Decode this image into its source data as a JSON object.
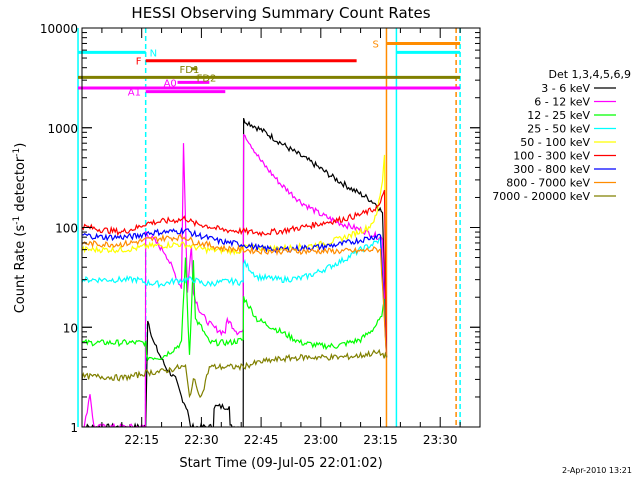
{
  "chart_data": {
    "type": "line",
    "title": "HESSI Observing Summary Count Rates",
    "xlabel": "Start Time (09-Jul-05 22:01:02)",
    "ylabel": "Count Rate (s⁻¹ detector⁻¹)",
    "ylabel_main": "Count Rate (s",
    "ylabel_sup1": "-1",
    "ylabel_mid": " detector",
    "ylabel_sup2": "-1",
    "ylabel_end": ")",
    "yscale": "log",
    "xlim_minutes": [
      0,
      100
    ],
    "ylim": [
      1,
      10000
    ],
    "x_ticks": [
      {
        "t": 15,
        "label": "22:15"
      },
      {
        "t": 30,
        "label": "22:30"
      },
      {
        "t": 45,
        "label": "22:45"
      },
      {
        "t": 60,
        "label": "23:00"
      },
      {
        "t": 75,
        "label": "23:15"
      },
      {
        "t": 90,
        "label": "23:30"
      }
    ],
    "y_ticks": [
      {
        "v": 1,
        "label": "1"
      },
      {
        "v": 10,
        "label": "10"
      },
      {
        "v": 100,
        "label": "100"
      },
      {
        "v": 1000,
        "label": "1000"
      },
      {
        "v": 10000,
        "label": "10000"
      }
    ],
    "legend_title": "Det 1,3,4,5,6,9",
    "legend_position": "right",
    "timestamp": "2-Apr-2010 13:21",
    "series": [
      {
        "name": "3 - 6 keV",
        "color": "#000000",
        "points": [
          [
            -1,
            1
          ],
          [
            16,
            1
          ],
          [
            16.5,
            12
          ],
          [
            18,
            7
          ],
          [
            21,
            4
          ],
          [
            23.5,
            3
          ],
          [
            25,
            2
          ],
          [
            26.5,
            1.5
          ],
          [
            27.2,
            1
          ],
          [
            33,
            1
          ],
          [
            33.2,
            1.6
          ],
          [
            37,
            1.6
          ],
          [
            37.2,
            1
          ],
          [
            40.5,
            1
          ],
          [
            40.6,
            1200
          ],
          [
            46,
            900
          ],
          [
            52,
            620
          ],
          [
            58,
            440
          ],
          [
            63,
            320
          ],
          [
            68,
            240
          ],
          [
            72,
            195
          ],
          [
            74,
            170
          ],
          [
            75.5,
            140
          ],
          [
            76.5,
            5
          ]
        ]
      },
      {
        "name": "6 - 12 keV",
        "color": "#ff00ff",
        "points": [
          [
            -1,
            1
          ],
          [
            0.6,
            1
          ],
          [
            2,
            2.2
          ],
          [
            3,
            1
          ],
          [
            14,
            1
          ],
          [
            15.9,
            1
          ],
          [
            16,
            90
          ],
          [
            18,
            75
          ],
          [
            21,
            55
          ],
          [
            24,
            30
          ],
          [
            25,
            25
          ],
          [
            25.5,
            700
          ],
          [
            26.5,
            22
          ],
          [
            27.5,
            70
          ],
          [
            28,
            22
          ],
          [
            29.5,
            15
          ],
          [
            31,
            12
          ],
          [
            33,
            10
          ],
          [
            35,
            9
          ],
          [
            36,
            9
          ],
          [
            36.5,
            12
          ],
          [
            39,
            9
          ],
          [
            40.5,
            9
          ],
          [
            40.6,
            900
          ],
          [
            45,
            460
          ],
          [
            50,
            270
          ],
          [
            55,
            180
          ],
          [
            60,
            135
          ],
          [
            65,
            110
          ],
          [
            70,
            95
          ],
          [
            74,
            82
          ],
          [
            75.5,
            78
          ],
          [
            76.5,
            5
          ]
        ]
      },
      {
        "name": "12 - 25 keV",
        "color": "#00ff00",
        "points": [
          [
            -1,
            7
          ],
          [
            8,
            7
          ],
          [
            14,
            7
          ],
          [
            16,
            7
          ],
          [
            16.2,
            5
          ],
          [
            20,
            5
          ],
          [
            23,
            6
          ],
          [
            25,
            7
          ],
          [
            26,
            50
          ],
          [
            27,
            5
          ],
          [
            27.5,
            15
          ],
          [
            28,
            50
          ],
          [
            28.5,
            12
          ],
          [
            30,
            10
          ],
          [
            32,
            7
          ],
          [
            34,
            7
          ],
          [
            37,
            7
          ],
          [
            40.5,
            7.5
          ],
          [
            40.6,
            20
          ],
          [
            44,
            12
          ],
          [
            50,
            9
          ],
          [
            55,
            7
          ],
          [
            60,
            6.5
          ],
          [
            64,
            6.5
          ],
          [
            67,
            7
          ],
          [
            70,
            7.5
          ],
          [
            73,
            9.5
          ],
          [
            75,
            12
          ],
          [
            76,
            18
          ],
          [
            76.5,
            5
          ]
        ]
      },
      {
        "name": "25 - 50 keV",
        "color": "#00ffff",
        "points": [
          [
            -1,
            30
          ],
          [
            5,
            30
          ],
          [
            10,
            30
          ],
          [
            14,
            30
          ],
          [
            16,
            28
          ],
          [
            20,
            27
          ],
          [
            23,
            29
          ],
          [
            26,
            30
          ],
          [
            28,
            30
          ],
          [
            31,
            27
          ],
          [
            34,
            28
          ],
          [
            37,
            29
          ],
          [
            40.5,
            28
          ],
          [
            40.6,
            45
          ],
          [
            44,
            32
          ],
          [
            50,
            30
          ],
          [
            55,
            31
          ],
          [
            58,
            34
          ],
          [
            62,
            40
          ],
          [
            66,
            48
          ],
          [
            70,
            60
          ],
          [
            73,
            68
          ],
          [
            75,
            75
          ],
          [
            76.5,
            5
          ]
        ]
      },
      {
        "name": "50 - 100 keV",
        "color": "#ffff00",
        "points": [
          [
            -1,
            60
          ],
          [
            5,
            60
          ],
          [
            10,
            60
          ],
          [
            14,
            62
          ],
          [
            16,
            65
          ],
          [
            20,
            66
          ],
          [
            24,
            68
          ],
          [
            26,
            67
          ],
          [
            28,
            64
          ],
          [
            31,
            60
          ],
          [
            35,
            59
          ],
          [
            40.5,
            58
          ],
          [
            40.6,
            65
          ],
          [
            44,
            62
          ],
          [
            50,
            62
          ],
          [
            55,
            64
          ],
          [
            60,
            68
          ],
          [
            64,
            75
          ],
          [
            68,
            85
          ],
          [
            72,
            100
          ],
          [
            74,
            130
          ],
          [
            75.5,
            300
          ],
          [
            76,
            550
          ],
          [
            76.5,
            5
          ]
        ]
      },
      {
        "name": "100 - 300 keV",
        "color": "#ff0000",
        "points": [
          [
            -1,
            105
          ],
          [
            5,
            95
          ],
          [
            10,
            90
          ],
          [
            14,
            100
          ],
          [
            16,
            110
          ],
          [
            20,
            115
          ],
          [
            25,
            120
          ],
          [
            26,
            125
          ],
          [
            28,
            110
          ],
          [
            31,
            105
          ],
          [
            35,
            95
          ],
          [
            40,
            92
          ],
          [
            45,
            88
          ],
          [
            50,
            92
          ],
          [
            55,
            100
          ],
          [
            60,
            110
          ],
          [
            65,
            120
          ],
          [
            70,
            135
          ],
          [
            73,
            150
          ],
          [
            75,
            170
          ],
          [
            76,
            250
          ],
          [
            76.5,
            5
          ]
        ]
      },
      {
        "name": "300 - 800 keV",
        "color": "#0000ff",
        "points": [
          [
            -1,
            85
          ],
          [
            5,
            80
          ],
          [
            10,
            80
          ],
          [
            14,
            82
          ],
          [
            16,
            88
          ],
          [
            20,
            90
          ],
          [
            25,
            92
          ],
          [
            26,
            95
          ],
          [
            28,
            86
          ],
          [
            31,
            80
          ],
          [
            35,
            72
          ],
          [
            40,
            68
          ],
          [
            45,
            62
          ],
          [
            50,
            60
          ],
          [
            55,
            62
          ],
          [
            60,
            64
          ],
          [
            65,
            68
          ],
          [
            70,
            75
          ],
          [
            73,
            80
          ],
          [
            75,
            85
          ],
          [
            76.5,
            5
          ]
        ]
      },
      {
        "name": "800 - 7000 keV",
        "color": "#ff8c00",
        "points": [
          [
            -1,
            70
          ],
          [
            5,
            68
          ],
          [
            10,
            68
          ],
          [
            14,
            72
          ],
          [
            16,
            75
          ],
          [
            20,
            78
          ],
          [
            25,
            80
          ],
          [
            26,
            80
          ],
          [
            28,
            72
          ],
          [
            31,
            68
          ],
          [
            35,
            62
          ],
          [
            40,
            60
          ],
          [
            45,
            58
          ],
          [
            50,
            58
          ],
          [
            55,
            58
          ],
          [
            60,
            58
          ],
          [
            65,
            58
          ],
          [
            70,
            58
          ],
          [
            73,
            60
          ],
          [
            75,
            60
          ],
          [
            76.5,
            5
          ]
        ]
      },
      {
        "name": "7000 - 20000 keV",
        "color": "#808000",
        "points": [
          [
            -1,
            3.2
          ],
          [
            5,
            3.2
          ],
          [
            10,
            3.1
          ],
          [
            14,
            3.3
          ],
          [
            16,
            3.5
          ],
          [
            20,
            3.6
          ],
          [
            25,
            4
          ],
          [
            26,
            4
          ],
          [
            27,
            2
          ],
          [
            28,
            3
          ],
          [
            30,
            2
          ],
          [
            32,
            4
          ],
          [
            35,
            4
          ],
          [
            40,
            4
          ],
          [
            45,
            4.5
          ],
          [
            50,
            4.8
          ],
          [
            55,
            5
          ],
          [
            60,
            5
          ],
          [
            65,
            5
          ],
          [
            70,
            5.2
          ],
          [
            73,
            5.5
          ],
          [
            75,
            5.5
          ],
          [
            76.5,
            5
          ]
        ]
      }
    ],
    "flag_bars": [
      {
        "label": "F",
        "color": "#ff0000",
        "t0": 16,
        "t1": 69,
        "y": 4700,
        "label_t": 13.5
      },
      {
        "label": "FD1",
        "color": "#808000",
        "t0": 27.5,
        "t1": 29,
        "y": 3900,
        "label_t": 24.5
      },
      {
        "label": "FD2",
        "color": "#808000",
        "t0": 28.6,
        "t1": 29.2,
        "y": 3200,
        "label_t": 28.8
      },
      {
        "label": "A0",
        "color": "#ff00ff",
        "t0": 24,
        "t1": 32,
        "y": 2850,
        "label_t": 20.5
      },
      {
        "label": "A1",
        "color": "#ff00ff",
        "t0": 16,
        "t1": 36,
        "y": 2300,
        "label_t": 11.5
      },
      {
        "label": "N",
        "color": "#00ffff",
        "t0": -1,
        "t1": 16,
        "y": 5700,
        "label_t": 17
      },
      {
        "label": "S",
        "color": "#ff8c00",
        "t0": 76.5,
        "t1": 95,
        "y": 7000,
        "label_t": 73
      },
      {
        "label": "",
        "color": "#00ffff",
        "t0": 79,
        "t1": 95,
        "y": 5700,
        "label_t": 0
      },
      {
        "label": "",
        "color": "#808000",
        "t0": -1,
        "t1": 95,
        "y": 3200,
        "label_t": 0
      },
      {
        "label": "",
        "color": "#ff00ff",
        "t0": -1,
        "t1": 95,
        "y": 2500,
        "label_t": 0
      }
    ],
    "vertical_lines": [
      {
        "t": -1,
        "color": "#00ffff",
        "style": "solid"
      },
      {
        "t": 16,
        "color": "#00ffff",
        "style": "dashed"
      },
      {
        "t": 76.5,
        "color": "#ff8c00",
        "style": "solid"
      },
      {
        "t": 79,
        "color": "#00ffff",
        "style": "solid"
      },
      {
        "t": 94,
        "color": "#ff8c00",
        "style": "dashed"
      },
      {
        "t": 95,
        "color": "#00ffff",
        "style": "dashed"
      }
    ]
  }
}
